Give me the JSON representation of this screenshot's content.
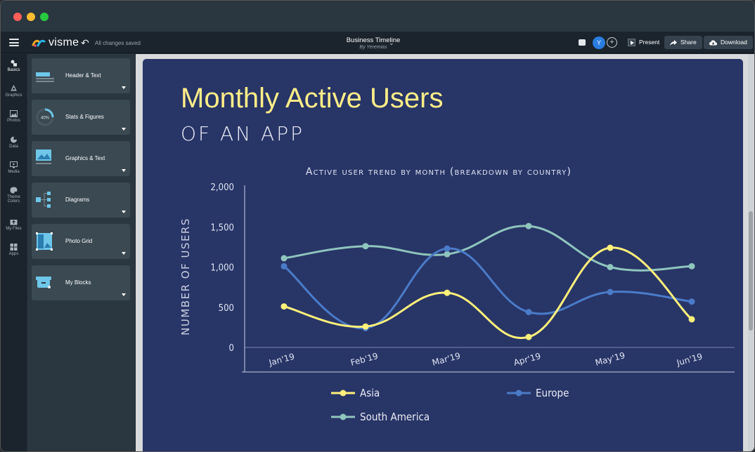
{
  "window": {
    "traffic_lights": {
      "close": "#ff5f57",
      "minimize": "#febc2e",
      "maximize": "#28c840"
    }
  },
  "topbar": {
    "logo_text": "visme",
    "save_status": "All changes saved",
    "doc_title": "Business Timeline",
    "doc_author": "By Yeremias",
    "avatar_initial": "Y",
    "present_label": "Present",
    "share_label": "Share",
    "download_label": "Download"
  },
  "rail": {
    "items": [
      {
        "label": "Basics",
        "icon": "shapes-icon",
        "active": true
      },
      {
        "label": "Graphics",
        "icon": "graphics-icon",
        "active": false
      },
      {
        "label": "Photos",
        "icon": "photos-icon",
        "active": false
      },
      {
        "label": "Data",
        "icon": "data-icon",
        "active": false
      },
      {
        "label": "Media",
        "icon": "media-icon",
        "active": false
      },
      {
        "label": "Theme Colors",
        "icon": "palette-icon",
        "active": false
      },
      {
        "label": "My Files",
        "icon": "upload-icon",
        "active": false
      },
      {
        "label": "Apps",
        "icon": "apps-icon",
        "active": false
      }
    ]
  },
  "panel": {
    "cards": [
      {
        "label": "Header & Text",
        "icon": "header-text-icon"
      },
      {
        "label": "Stats & Figures",
        "icon": "stats-figures-icon"
      },
      {
        "label": "Graphics & Text",
        "icon": "graphics-text-icon"
      },
      {
        "label": "Diagrams",
        "icon": "diagrams-icon"
      },
      {
        "label": "Photo Grid",
        "icon": "photo-grid-icon"
      },
      {
        "label": "My Blocks",
        "icon": "my-blocks-icon"
      }
    ],
    "stats_icon_text": "40%"
  },
  "slide": {
    "title": "Monthly Active Users",
    "subtitle": "OF AN APP"
  },
  "chart_data": {
    "type": "line",
    "title": "Active user trend by month (breakdown by country)",
    "xlabel": "",
    "ylabel": "Number of users",
    "categories": [
      "Jan'19",
      "Feb'19",
      "Mar'19",
      "Apr'19",
      "May'19",
      "Jun'19"
    ],
    "ylim": [
      0,
      2000
    ],
    "yticks": [
      "2,000",
      "1,500",
      "1,000",
      "500",
      "0"
    ],
    "ytick_values": [
      2000,
      1500,
      1000,
      500,
      0
    ],
    "legend_position": "bottom-left",
    "series": [
      {
        "name": "Asia",
        "color": "#fff17a",
        "values": [
          510,
          260,
          680,
          130,
          1240,
          350
        ]
      },
      {
        "name": "Europe",
        "color": "#4a7bc8",
        "values": [
          1010,
          240,
          1230,
          440,
          690,
          570
        ]
      },
      {
        "name": "South America",
        "color": "#8fc5bd",
        "values": [
          1110,
          1260,
          1160,
          1510,
          1000,
          1010
        ]
      }
    ]
  },
  "colors": {
    "slide_bg": "#283567",
    "title": "#ffee88",
    "accent_blue": "#2a7de1"
  }
}
